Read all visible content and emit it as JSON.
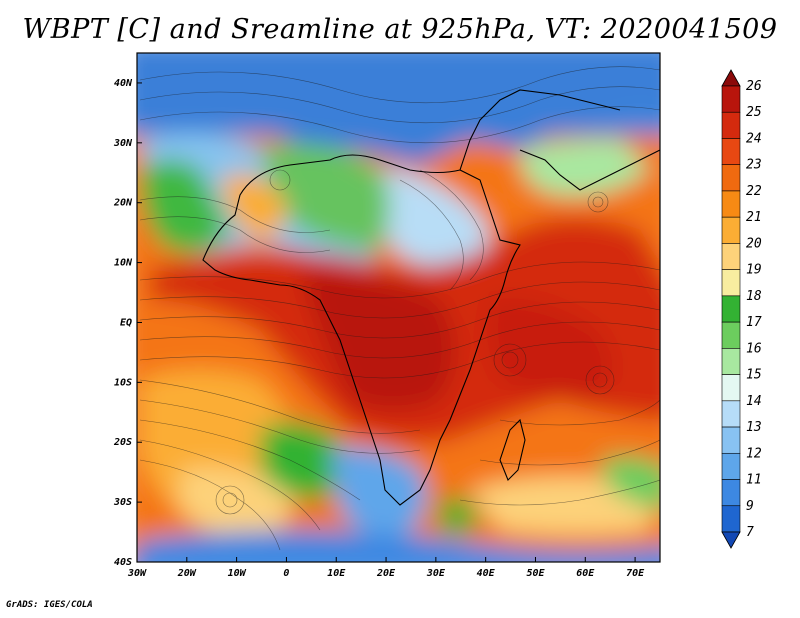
{
  "title": "WBPT [C] and Sreamline at 925hPa, VT: 2020041509",
  "credit": "GrADS: IGES/COLA",
  "map": {
    "lat_labels": [
      {
        "label": "40N",
        "value": 40
      },
      {
        "label": "30N",
        "value": 30
      },
      {
        "label": "20N",
        "value": 20
      },
      {
        "label": "10N",
        "value": 10
      },
      {
        "label": "EQ",
        "value": 0
      },
      {
        "label": "10S",
        "value": -10
      },
      {
        "label": "20S",
        "value": -20
      },
      {
        "label": "30S",
        "value": -30
      },
      {
        "label": "40S",
        "value": -40
      }
    ],
    "lon_labels": [
      {
        "label": "30W",
        "value": -30
      },
      {
        "label": "20W",
        "value": -20
      },
      {
        "label": "10W",
        "value": -10
      },
      {
        "label": "0",
        "value": 0
      },
      {
        "label": "10E",
        "value": 10
      },
      {
        "label": "20E",
        "value": 20
      },
      {
        "label": "30E",
        "value": 30
      },
      {
        "label": "40E",
        "value": 40
      },
      {
        "label": "50E",
        "value": 50
      },
      {
        "label": "60E",
        "value": 60
      },
      {
        "label": "70E",
        "value": 70
      }
    ],
    "lon_range": [
      -30,
      75
    ],
    "lat_range": [
      -40,
      45
    ]
  },
  "colorbar": {
    "labels": [
      "26",
      "25",
      "24",
      "23",
      "22",
      "21",
      "20",
      "19",
      "18",
      "17",
      "16",
      "15",
      "14",
      "13",
      "12",
      "11",
      "9",
      "7"
    ],
    "colors": [
      "#8b0a0a",
      "#b8150c",
      "#d42a0e",
      "#e84812",
      "#f06a10",
      "#f78a14",
      "#fbad34",
      "#fdd27a",
      "#f8eda0",
      "#33b233",
      "#6ccd5e",
      "#a8e8a0",
      "#e4f8f2",
      "#b6dcf8",
      "#88c2f2",
      "#5ea6ea",
      "#3d88e2",
      "#1f66d0",
      "#1248b4"
    ]
  }
}
